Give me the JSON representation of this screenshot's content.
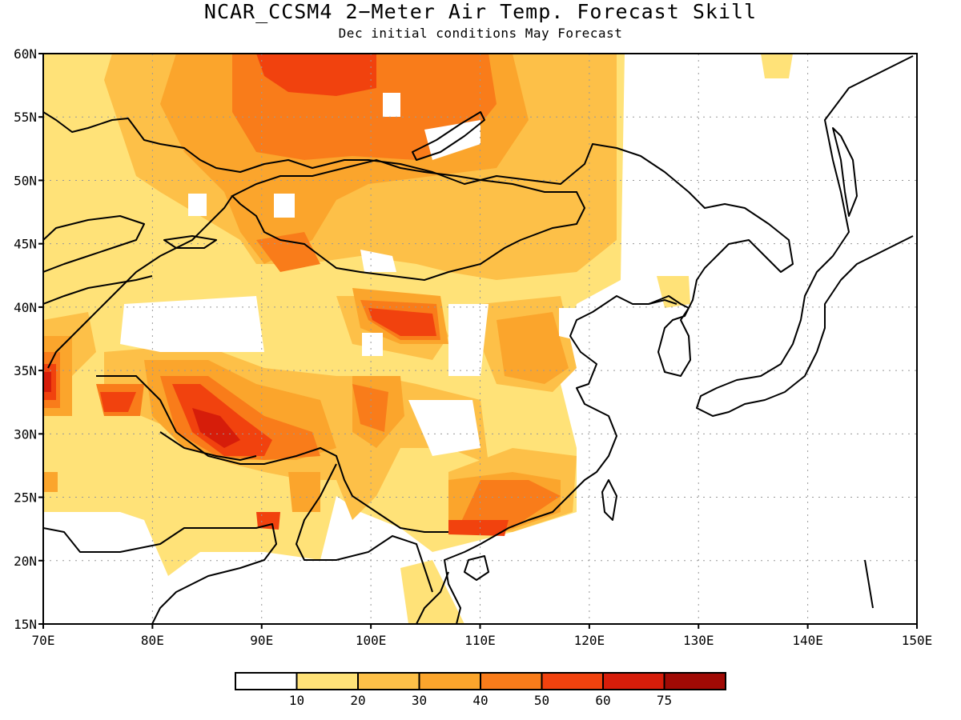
{
  "title": "NCAR_CCSM4 2−Meter Air Temp. Forecast Skill",
  "subtitle": "Dec initial conditions  May Forecast",
  "map": {
    "lon_range": [
      70,
      150
    ],
    "lat_range": [
      15,
      60
    ],
    "lon_ticks": [
      "70E",
      "80E",
      "90E",
      "100E",
      "110E",
      "120E",
      "130E",
      "140E",
      "150E"
    ],
    "lat_ticks": [
      "15N",
      "20N",
      "25N",
      "30N",
      "35N",
      "40N",
      "45N",
      "50N",
      "55N",
      "60N"
    ],
    "grid": "dotted"
  },
  "colorbar": {
    "colors": [
      "#ffffff",
      "#ffe278",
      "#fdc048",
      "#fba52c",
      "#f97c1a",
      "#f1420e",
      "#d61d0a",
      "#a00a05"
    ],
    "labels": [
      "10",
      "20",
      "30",
      "40",
      "50",
      "60",
      "75"
    ]
  },
  "chart_data": {
    "type": "heatmap",
    "title": "NCAR_CCSM4 2−Meter Air Temp. Forecast Skill",
    "subtitle": "Dec initial conditions  May Forecast",
    "x_range": [
      70,
      150
    ],
    "y_range": [
      15,
      60
    ],
    "levels": [
      10,
      20,
      30,
      40,
      50,
      60,
      75
    ],
    "legend": "bottom",
    "regions": [
      {
        "lon": [
          71,
          103
        ],
        "lat": [
          42,
          60
        ],
        "value": 25
      },
      {
        "lon": [
          80,
          120
        ],
        "lat": [
          24,
          37
        ],
        "value": 20
      },
      {
        "lon": [
          82,
          92
        ],
        "lat": [
          28,
          35
        ],
        "value": 55
      },
      {
        "lon": [
          90,
          105
        ],
        "lat": [
          51,
          60
        ],
        "value": 45
      },
      {
        "lon": [
          99,
          105
        ],
        "lat": [
          37.5,
          41
        ],
        "value": 50
      },
      {
        "lon": [
          70,
          72
        ],
        "lat": [
          32,
          35
        ],
        "value": 50
      },
      {
        "lon": [
          105,
          116
        ],
        "lat": [
          22,
          25.5
        ],
        "value": 45
      }
    ]
  }
}
